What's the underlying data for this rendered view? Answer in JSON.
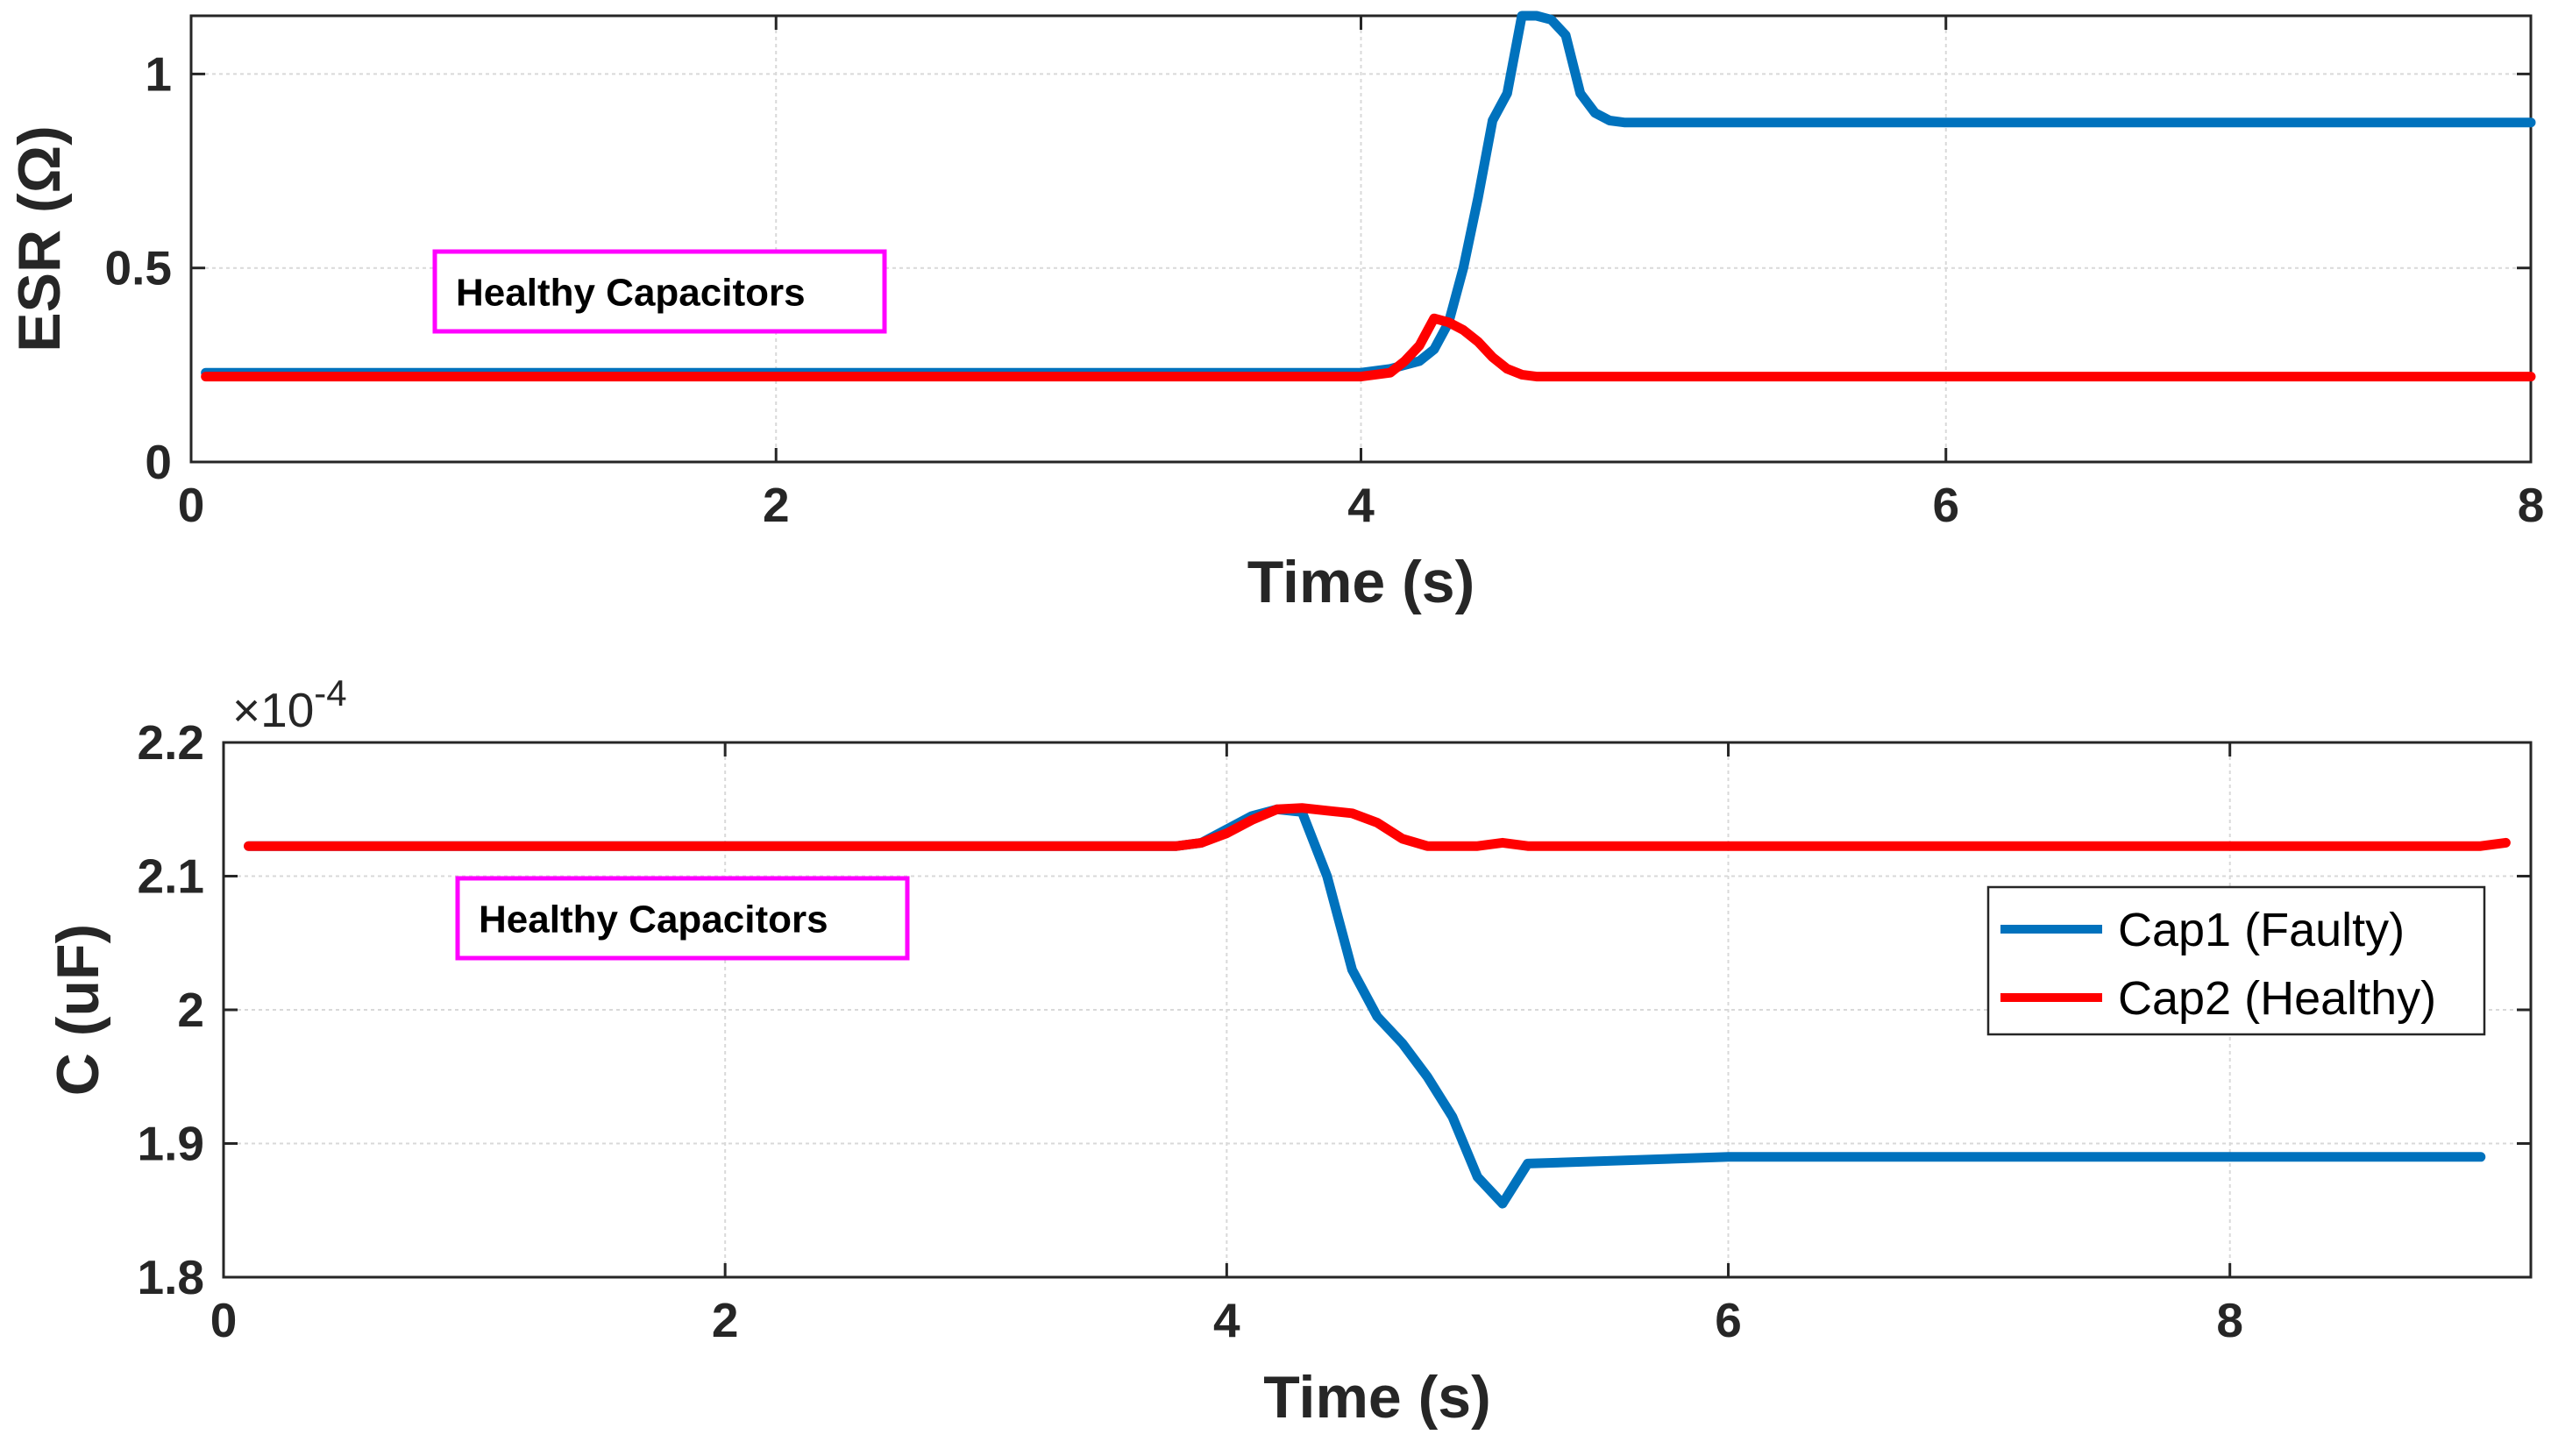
{
  "colors": {
    "cap1": "#0072BD",
    "cap2": "#FF0000",
    "annotation_border": "#FF00FF",
    "grid": "#d9d9d9",
    "axes": "#262626"
  },
  "chart_data": [
    {
      "type": "line",
      "xlabel": "Time (s)",
      "ylabel": "ESR (Ω)",
      "xlim": [
        0,
        8
      ],
      "ylim": [
        0,
        1.15
      ],
      "xticks": [
        0,
        2,
        4,
        6,
        8
      ],
      "xtick_labels": [
        "0",
        "2",
        "4",
        "6",
        "8"
      ],
      "yticks": [
        0,
        0.5,
        1
      ],
      "ytick_labels": [
        "0",
        "0.5",
        "1"
      ],
      "grid": true,
      "annotation": "Healthy Capacitors",
      "series": [
        {
          "name": "Cap1 (Faulty)",
          "color": "#0072BD",
          "x": [
            0.05,
            4.0,
            4.1,
            4.2,
            4.25,
            4.3,
            4.35,
            4.4,
            4.45,
            4.5,
            4.55,
            4.6,
            4.65,
            4.7,
            4.75,
            4.8,
            4.85,
            4.9,
            5.0,
            6.0,
            8.0
          ],
          "y": [
            0.23,
            0.23,
            0.24,
            0.26,
            0.29,
            0.36,
            0.5,
            0.68,
            0.88,
            0.95,
            1.15,
            1.15,
            1.14,
            1.1,
            0.95,
            0.9,
            0.88,
            0.875,
            0.875,
            0.875,
            0.875
          ]
        },
        {
          "name": "Cap2 (Healthy)",
          "color": "#FF0000",
          "x": [
            0.05,
            4.0,
            4.1,
            4.15,
            4.2,
            4.25,
            4.3,
            4.35,
            4.4,
            4.45,
            4.5,
            4.55,
            4.6,
            4.7,
            5.0,
            6.0,
            8.0
          ],
          "y": [
            0.22,
            0.22,
            0.23,
            0.26,
            0.3,
            0.37,
            0.36,
            0.34,
            0.31,
            0.27,
            0.24,
            0.225,
            0.22,
            0.22,
            0.22,
            0.22,
            0.22
          ]
        }
      ]
    },
    {
      "type": "line",
      "xlabel": "Time (s)",
      "ylabel": "C (uF)",
      "exponent_label": "×10",
      "exponent_power": "-4",
      "xlim": [
        0,
        9.2
      ],
      "ylim": [
        1.8,
        2.2
      ],
      "xticks": [
        0,
        2,
        4,
        6,
        8
      ],
      "xtick_labels": [
        "0",
        "2",
        "4",
        "6",
        "8"
      ],
      "yticks": [
        1.8,
        1.9,
        2.0,
        2.1,
        2.2
      ],
      "ytick_labels": [
        "1.8",
        "1.9",
        "2",
        "2.1",
        "2.2"
      ],
      "grid": true,
      "legend_position": "right",
      "annotation": "Healthy Capacitors",
      "series": [
        {
          "name": "Cap1 (Faulty)",
          "color": "#0072BD",
          "x": [
            0.1,
            3.8,
            3.9,
            4.0,
            4.1,
            4.2,
            4.3,
            4.4,
            4.5,
            4.6,
            4.7,
            4.8,
            4.9,
            5.0,
            5.1,
            5.2,
            6.0,
            7.0,
            8.0,
            9.0
          ],
          "y": [
            2.1225,
            2.1225,
            2.125,
            2.135,
            2.145,
            2.15,
            2.148,
            2.1,
            2.03,
            1.995,
            1.975,
            1.95,
            1.92,
            1.875,
            1.855,
            1.885,
            1.89,
            1.89,
            1.89,
            1.89
          ]
        },
        {
          "name": "Cap2 (Healthy)",
          "color": "#FF0000",
          "x": [
            0.1,
            3.8,
            3.9,
            4.0,
            4.1,
            4.2,
            4.3,
            4.4,
            4.5,
            4.6,
            4.7,
            4.8,
            5.0,
            5.1,
            5.2,
            6.0,
            7.0,
            8.0,
            9.0,
            9.1
          ],
          "y": [
            2.1225,
            2.1225,
            2.125,
            2.132,
            2.142,
            2.15,
            2.151,
            2.149,
            2.147,
            2.14,
            2.128,
            2.1225,
            2.1225,
            2.125,
            2.1225,
            2.1225,
            2.1225,
            2.1225,
            2.1225,
            2.125
          ]
        }
      ]
    }
  ]
}
